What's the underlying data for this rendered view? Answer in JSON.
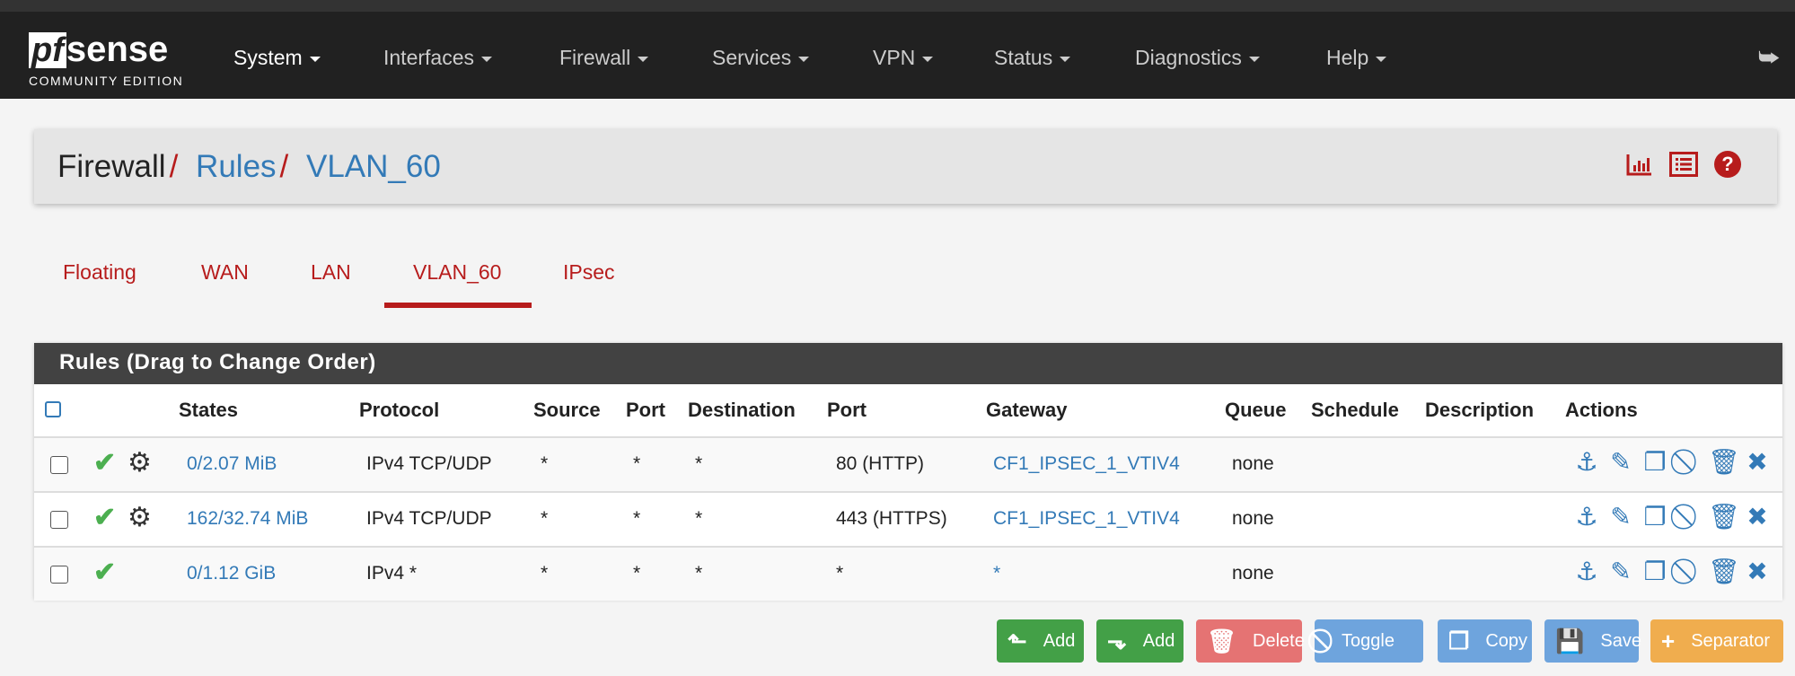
{
  "nav": {
    "logo_main": "pf",
    "logo_sense": "sense",
    "logo_edition": "COMMUNITY EDITION",
    "items": [
      {
        "label": "System"
      },
      {
        "label": "Interfaces"
      },
      {
        "label": "Firewall"
      },
      {
        "label": "Services"
      },
      {
        "label": "VPN"
      },
      {
        "label": "Status"
      },
      {
        "label": "Diagnostics"
      },
      {
        "label": "Help"
      }
    ]
  },
  "breadcrumb": {
    "root": "Firewall",
    "sep": "/",
    "rules": "Rules",
    "current": "VLAN_60"
  },
  "tabs": [
    {
      "label": "Floating"
    },
    {
      "label": "WAN"
    },
    {
      "label": "LAN"
    },
    {
      "label": "VLAN_60",
      "active": true
    },
    {
      "label": "IPsec"
    }
  ],
  "panel": {
    "title": "Rules (Drag to Change Order)",
    "headers": [
      "States",
      "Protocol",
      "Source",
      "Port",
      "Destination",
      "Port",
      "Gateway",
      "Queue",
      "Schedule",
      "Description",
      "Actions"
    ],
    "rows": [
      {
        "states": "0/2.07 MiB",
        "protocol": "IPv4 TCP/UDP",
        "source": "*",
        "sport": "*",
        "destination": "*",
        "dport": "80 (HTTP)",
        "gateway": "CF1_IPSEC_1_VTIV4",
        "queue": "none",
        "schedule": "",
        "description": "",
        "advanced": true
      },
      {
        "states": "162/32.74 MiB",
        "protocol": "IPv4 TCP/UDP",
        "source": "*",
        "sport": "*",
        "destination": "*",
        "dport": "443 (HTTPS)",
        "gateway": "CF1_IPSEC_1_VTIV4",
        "queue": "none",
        "schedule": "",
        "description": "",
        "advanced": true
      },
      {
        "states": "0/1.12 GiB",
        "protocol": "IPv4 *",
        "source": "*",
        "sport": "*",
        "destination": "*",
        "dport": "*",
        "gateway": "*",
        "queue": "none",
        "schedule": "",
        "description": "",
        "advanced": false
      }
    ]
  },
  "buttons": {
    "add_top": "Add",
    "add_bottom": "Add",
    "delete": "Delete",
    "toggle": "Toggle",
    "copy": "Copy",
    "save": "Save",
    "separator": "Separator"
  },
  "colors": {
    "accent": "#b71c1c",
    "link": "#337ab7",
    "navbar": "#212121",
    "success": "#43a047",
    "danger": "#e57373",
    "info": "#6ea4dd",
    "warning": "#f0ad4e"
  }
}
